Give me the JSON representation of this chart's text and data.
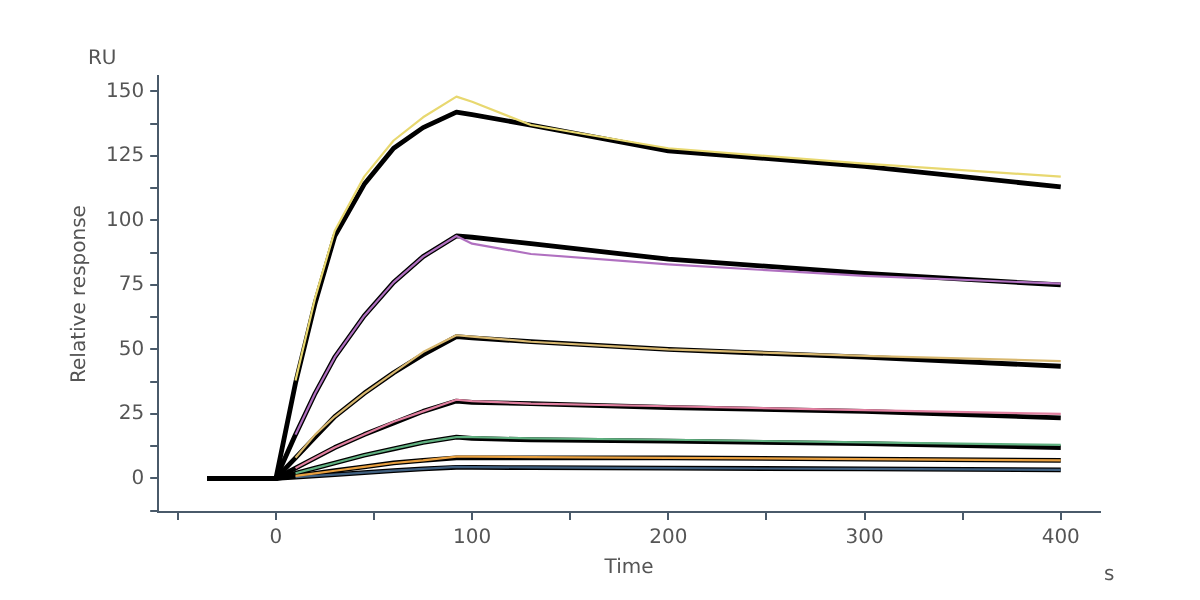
{
  "chart_data": {
    "type": "line",
    "xlabel": "Time",
    "ylabel": "Relative response",
    "annotations": [
      "RU",
      "s"
    ],
    "x": [
      -35,
      0,
      10,
      20,
      30,
      45,
      60,
      75,
      92,
      100,
      130,
      200,
      300,
      400
    ],
    "xlim": [
      -60,
      420
    ],
    "xticks": [
      {
        "value": -50,
        "label": null
      },
      0,
      {
        "value": 50,
        "label": null
      },
      100,
      {
        "value": 150,
        "label": null
      },
      200,
      {
        "value": 250,
        "label": null
      },
      300,
      {
        "value": 350,
        "label": null
      },
      400
    ],
    "ylim": [
      -13,
      156
    ],
    "yticks": [
      {
        "value": -12.5,
        "label": null
      },
      0,
      {
        "value": 12.5,
        "label": null
      },
      25,
      {
        "value": 37.5,
        "label": null
      },
      50,
      {
        "value": 62.5,
        "label": null
      },
      75,
      {
        "value": 87.5,
        "label": null
      },
      100,
      {
        "value": 112.5,
        "label": null
      },
      125,
      {
        "value": 137.5,
        "label": null
      },
      150
    ],
    "grid": false,
    "legend": false,
    "marker": "none",
    "line_style": "solid",
    "series": [
      {
        "color": "#e8d870",
        "values": [
          null,
          null,
          38,
          70,
          96,
          117,
          131,
          140,
          148,
          146,
          137,
          128,
          122,
          117
        ]
      },
      {
        "color": "#b070c0",
        "values": [
          null,
          null,
          17,
          33,
          47,
          63,
          76,
          86,
          94,
          91,
          87,
          83,
          78.5,
          75.5
        ]
      },
      {
        "color": "#d8b870",
        "values": [
          null,
          null,
          8,
          17,
          24,
          33,
          41,
          49,
          55.5,
          55,
          53,
          50,
          47.5,
          45.5
        ]
      },
      {
        "color": "#e080a0",
        "values": [
          null,
          null,
          4,
          8,
          12,
          17,
          22,
          26,
          30.5,
          30,
          29,
          28,
          26.5,
          25
        ]
      },
      {
        "color": "#60b080",
        "values": [
          null,
          null,
          2,
          4,
          6,
          9,
          11.5,
          14,
          16,
          16,
          15.5,
          15,
          14,
          13
        ]
      },
      {
        "color": "#e8a040",
        "values": [
          null,
          null,
          1,
          2,
          3,
          4.5,
          6,
          7,
          8.5,
          8.5,
          8.3,
          8,
          7.5,
          7
        ]
      },
      {
        "color": "#406080",
        "values": [
          null,
          null,
          0.5,
          1,
          1.5,
          2.3,
          3,
          3.7,
          4.5,
          4.4,
          4.3,
          4,
          3.7,
          3.3
        ]
      },
      {
        "color": "#000000",
        "values": [
          0,
          0,
          37,
          68,
          94,
          114,
          128,
          136,
          142,
          141,
          137,
          127,
          121,
          113
        ]
      },
      {
        "color": "#000000",
        "values": [
          0,
          0,
          17,
          33,
          47,
          63,
          76,
          86,
          94,
          93.5,
          91,
          85,
          79.5,
          75
        ]
      },
      {
        "color": "#000000",
        "values": [
          0,
          0,
          8,
          16,
          24,
          33,
          41,
          48,
          55,
          54.5,
          53,
          50,
          47,
          43.5
        ]
      },
      {
        "color": "#000000",
        "values": [
          0,
          0,
          4,
          8,
          12,
          17,
          21.5,
          26,
          30,
          29.5,
          29,
          27.5,
          26,
          23.5
        ]
      },
      {
        "color": "#000000",
        "values": [
          0,
          0,
          2,
          4,
          6,
          9,
          11.5,
          14,
          16,
          15.5,
          15,
          14.5,
          13.5,
          12
        ]
      },
      {
        "color": "#000000",
        "values": [
          0,
          0,
          1,
          2,
          3,
          4.5,
          6,
          7,
          8,
          8,
          8,
          8,
          7.5,
          7
        ]
      },
      {
        "color": "#000000",
        "values": [
          0,
          0,
          0.5,
          1,
          1.5,
          2.3,
          3,
          3.7,
          4.3,
          4.3,
          4.2,
          4,
          3.7,
          3.3
        ]
      }
    ]
  }
}
